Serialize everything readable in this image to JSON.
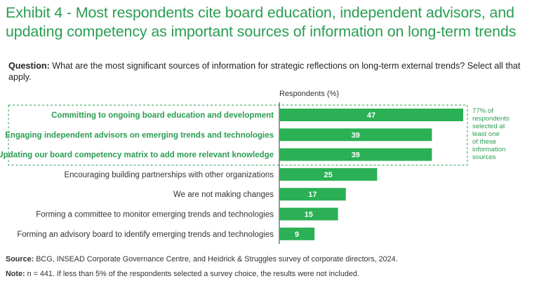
{
  "title": "Exhibit 4 - Most respondents cite board education, independent advisors, and updating competency as important sources of information on long-term trends",
  "question_label": "Question:",
  "question_text": "What are the most significant sources of information for strategic reflections on long-term external trends? Select all that apply.",
  "source_label": "Source:",
  "source_text": "BCG, INSEAD Corporate Governance Centre, and Heidrick & Struggles survey of corporate directors, 2024.",
  "note_label": "Note:",
  "note_text": "n = 441. If less than 5% of the respondents selected a survey choice, the results were not included.",
  "colors": {
    "accent": "#2a9d52",
    "bar": "#2bb055"
  },
  "chart_data": {
    "type": "bar",
    "orientation": "horizontal",
    "xlabel": "Respondents (%)",
    "categories": [
      "Committing to ongoing board education and development",
      "Engaging independent advisors on emerging trends and technologies",
      "Updating our board competency matrix to add more relevant knowledge",
      "Encouraging building partnerships with other organizations",
      "We are not making changes",
      "Forming a committee to monitor emerging trends and technologies",
      "Forming an advisory board to identify emerging trends and technologies"
    ],
    "values": [
      47,
      39,
      39,
      25,
      17,
      15,
      9
    ],
    "highlighted": [
      true,
      true,
      true,
      false,
      false,
      false,
      false
    ],
    "xlim": [
      0,
      47
    ],
    "annotation": "77% of respondents selected at least one of these information sources"
  }
}
